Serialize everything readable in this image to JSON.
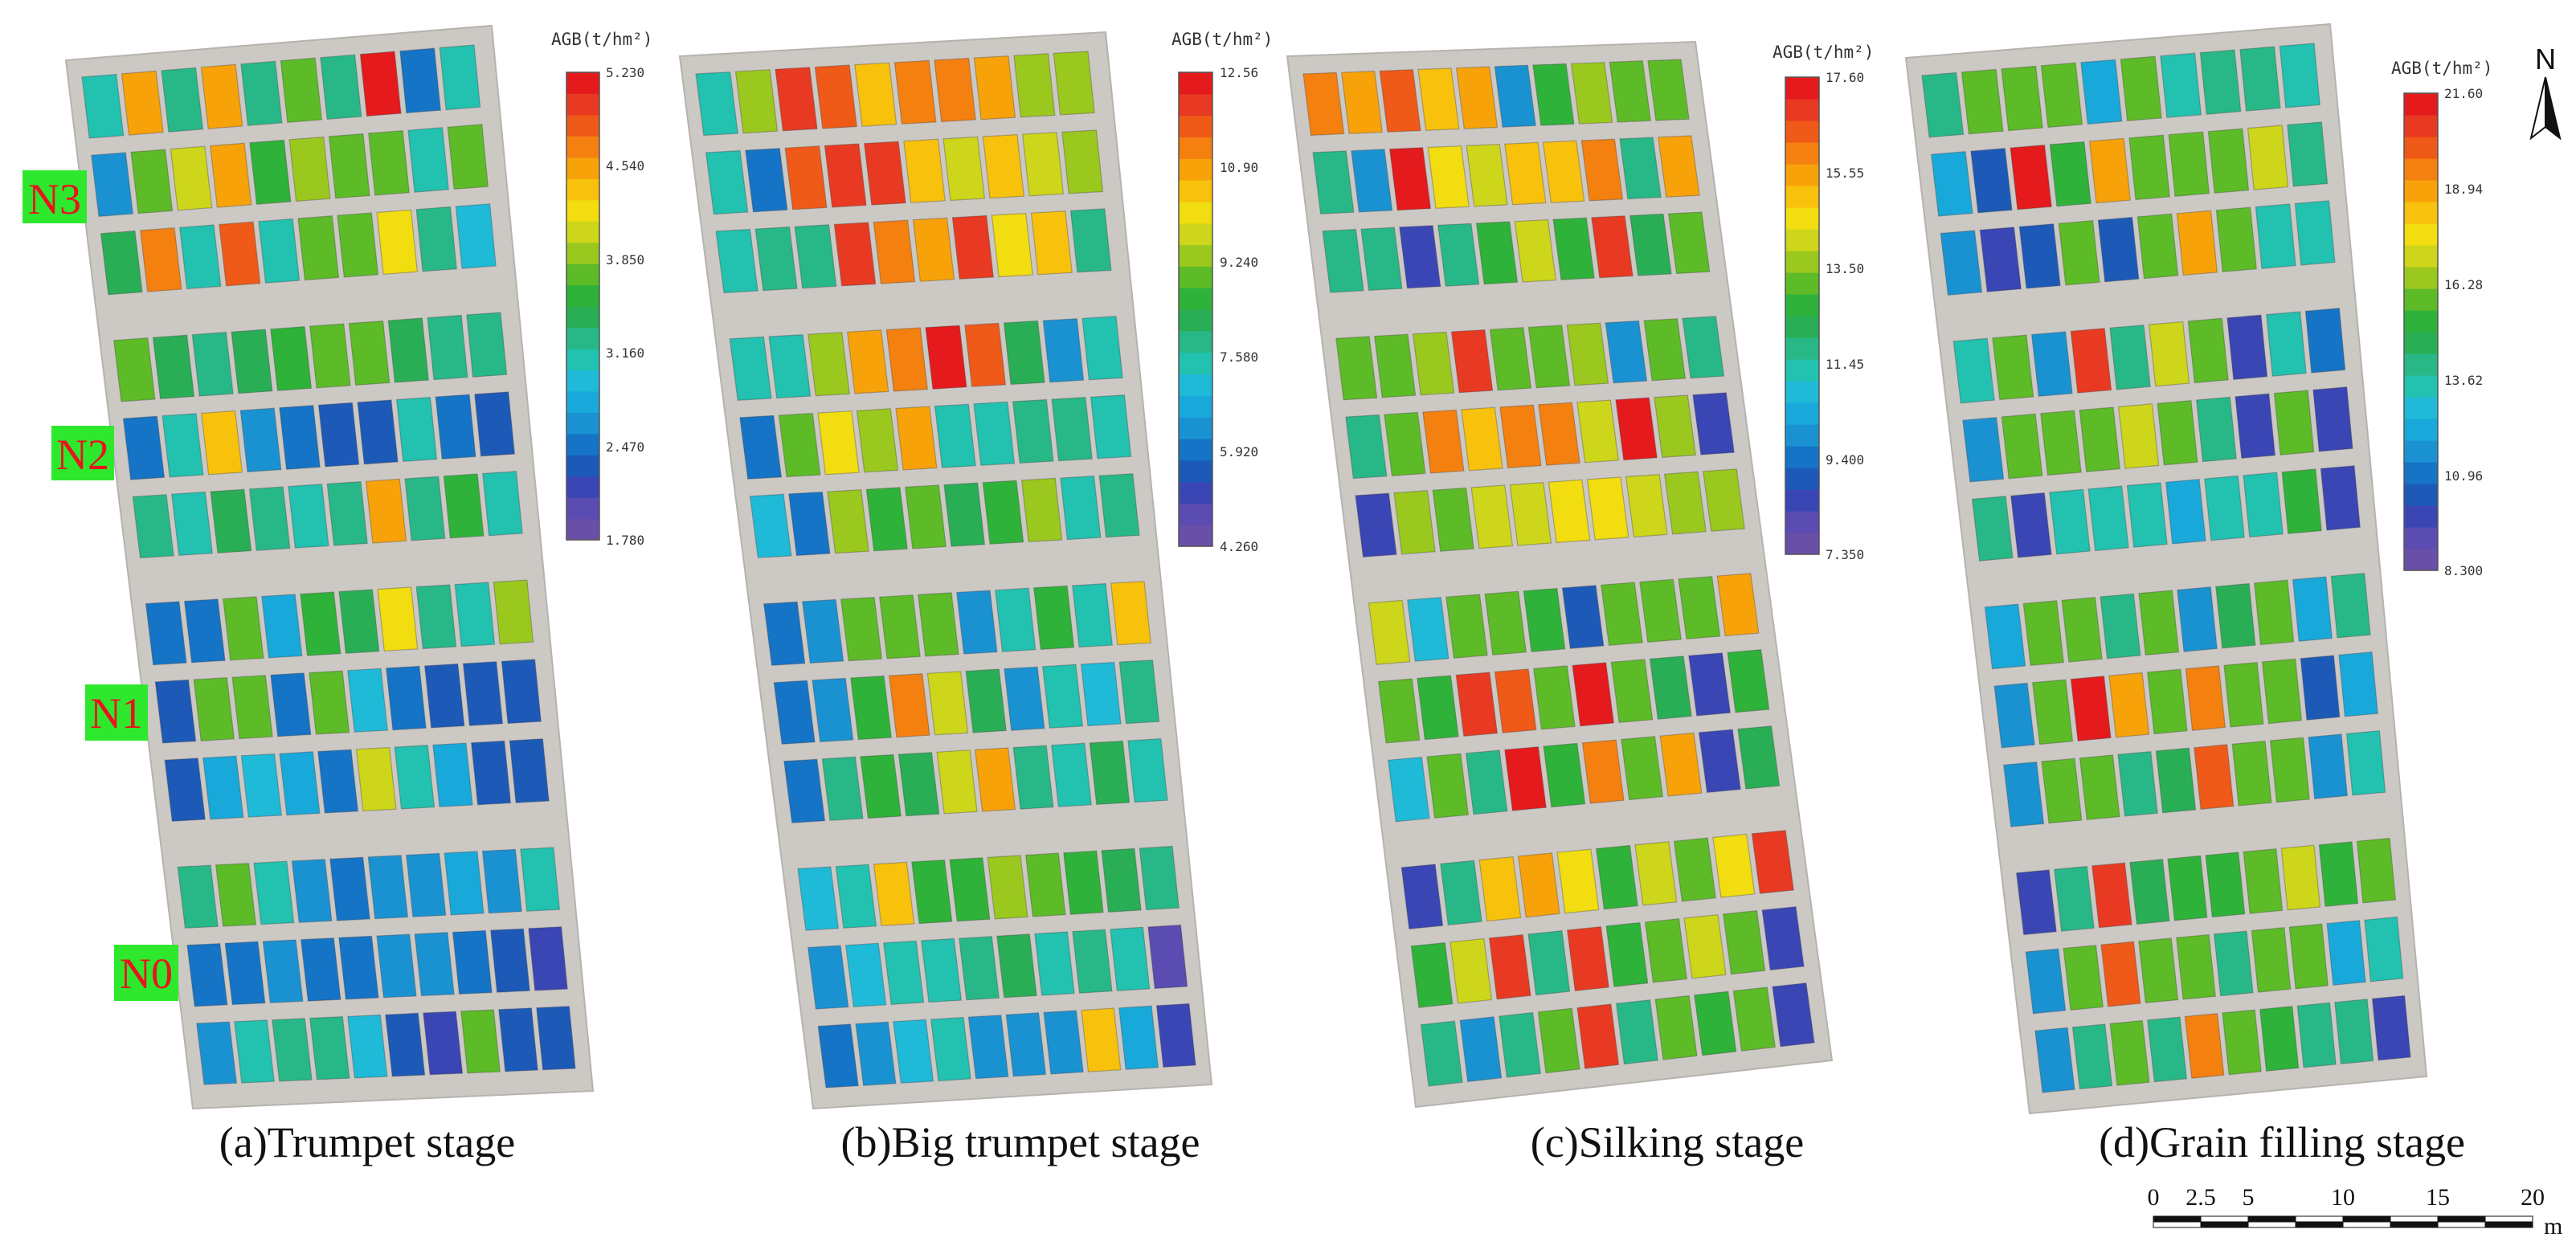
{
  "colorbar_palette": [
    "#6a4fa8",
    "#5a4cb0",
    "#3a46b4",
    "#1d5ab8",
    "#1574c6",
    "#1a92d2",
    "#19a8da",
    "#1fbad8",
    "#22c1b0",
    "#28b888",
    "#2aae55",
    "#2fb23a",
    "#5dbb27",
    "#9bc81e",
    "#cdd61a",
    "#f1dd10",
    "#f8c20c",
    "#f8a20a",
    "#f48010",
    "#ef5a18",
    "#e83a22",
    "#e41a1c"
  ],
  "chart_data": [
    {
      "type": "heatmap",
      "title": "(a)Trumpet stage",
      "legend_title": "AGB(t/hm²)",
      "colorbar_ticks": [
        "5.230",
        "4.540",
        "3.850",
        "3.160",
        "2.470",
        "1.780"
      ],
      "value_range": [
        1.78,
        5.23
      ],
      "rows": [
        [
          3.1,
          4.5,
          3.2,
          4.6,
          3.3,
          3.8,
          3.2,
          5.2,
          2.5,
          3.1
        ],
        [
          2.6,
          3.8,
          4.1,
          4.5,
          3.6,
          3.9,
          3.8,
          3.7,
          3.1,
          3.8
        ],
        [
          3.5,
          4.7,
          3.1,
          4.9,
          3.1,
          3.7,
          3.8,
          4.2,
          3.3,
          2.9
        ],
        [
          3.8,
          3.5,
          3.2,
          3.5,
          3.6,
          3.8,
          3.7,
          3.4,
          3.2,
          3.2
        ],
        [
          2.5,
          3.1,
          4.4,
          2.6,
          2.5,
          2.3,
          2.2,
          3.1,
          2.5,
          2.3
        ],
        [
          3.2,
          3.1,
          3.4,
          3.2,
          3.1,
          3.3,
          4.5,
          3.3,
          3.6,
          3.1
        ],
        [
          2.5,
          2.5,
          3.8,
          2.8,
          3.6,
          3.4,
          4.2,
          3.2,
          3.1,
          3.9
        ],
        [
          2.2,
          3.8,
          3.8,
          2.4,
          3.7,
          2.9,
          2.5,
          2.3,
          2.2,
          2.2
        ],
        [
          2.2,
          2.7,
          2.9,
          2.8,
          2.4,
          4.1,
          3.1,
          2.8,
          2.2,
          2.2
        ],
        [
          3.2,
          3.7,
          3.1,
          2.6,
          2.5,
          2.6,
          2.6,
          2.8,
          2.6,
          3.1
        ],
        [
          2.5,
          2.5,
          2.6,
          2.5,
          2.5,
          2.6,
          2.6,
          2.5,
          2.2,
          2.1
        ],
        [
          2.6,
          3.1,
          3.2,
          3.2,
          3.0,
          2.2,
          2.1,
          3.8,
          2.2,
          2.2
        ]
      ]
    },
    {
      "type": "heatmap",
      "title": "(b)Big trumpet stage",
      "legend_title": "AGB(t/hm²)",
      "colorbar_ticks": [
        "12.56",
        "10.90",
        "9.240",
        "7.580",
        "5.920",
        "4.260"
      ],
      "value_range": [
        4.26,
        12.56
      ],
      "rows": [
        [
          7.6,
          9.3,
          12.3,
          11.8,
          10.5,
          11.5,
          11.3,
          11.0,
          9.3,
          9.4
        ],
        [
          7.4,
          5.8,
          11.6,
          12.0,
          12.3,
          10.6,
          9.9,
          10.4,
          9.8,
          9.5
        ],
        [
          7.6,
          7.7,
          8.0,
          12.1,
          11.5,
          11.0,
          12.2,
          10.2,
          10.6,
          7.8
        ],
        [
          7.6,
          7.6,
          9.3,
          10.8,
          11.4,
          12.4,
          11.6,
          8.4,
          6.1,
          7.4
        ],
        [
          6.0,
          9.2,
          10.3,
          9.4,
          10.8,
          7.6,
          7.4,
          8.0,
          7.7,
          7.4
        ],
        [
          6.9,
          6.0,
          9.3,
          8.8,
          8.9,
          8.2,
          8.7,
          9.3,
          7.5,
          7.8
        ],
        [
          6.0,
          6.3,
          8.9,
          9.1,
          9.2,
          6.1,
          7.4,
          8.5,
          7.6,
          10.5
        ],
        [
          6.0,
          6.3,
          8.6,
          11.5,
          9.6,
          8.4,
          6.3,
          7.5,
          7.1,
          7.7
        ],
        [
          6.0,
          7.8,
          8.7,
          8.1,
          9.7,
          10.9,
          7.7,
          7.6,
          8.1,
          7.5
        ],
        [
          6.9,
          7.6,
          10.7,
          8.6,
          8.7,
          9.3,
          9.2,
          8.7,
          8.1,
          7.8
        ],
        [
          6.3,
          7.2,
          7.5,
          7.5,
          7.8,
          8.1,
          7.4,
          8.0,
          7.3,
          4.7
        ],
        [
          6.0,
          6.3,
          7.2,
          7.3,
          6.2,
          6.1,
          6.3,
          10.5,
          6.6,
          5.1
        ]
      ]
    },
    {
      "type": "heatmap",
      "title": "(c)Silking stage",
      "legend_title": "AGB(t/hm²)",
      "colorbar_ticks": [
        "17.60",
        "15.55",
        "13.50",
        "11.45",
        "9.400",
        "7.350"
      ],
      "value_range": [
        7.35,
        17.6
      ],
      "rows": [
        [
          15.9,
          15.7,
          16.7,
          15.4,
          15.6,
          9.6,
          12.7,
          13.8,
          13.2,
          13.1
        ],
        [
          11.6,
          9.6,
          17.4,
          14.6,
          14.4,
          15.0,
          15.1,
          16.3,
          11.6,
          15.6
        ],
        [
          11.6,
          11.6,
          8.4,
          11.6,
          12.8,
          14.1,
          12.8,
          17.3,
          12.3,
          13.0
        ],
        [
          13.1,
          13.0,
          13.5,
          17.2,
          13.3,
          13.1,
          13.5,
          9.6,
          13.4,
          11.6
        ],
        [
          11.6,
          13.4,
          16.1,
          15.3,
          16.1,
          16.1,
          14.2,
          17.4,
          13.8,
          8.2
        ],
        [
          8.2,
          13.7,
          13.3,
          14.0,
          14.1,
          14.6,
          14.8,
          14.1,
          13.9,
          13.7
        ],
        [
          14.0,
          10.8,
          13.0,
          13.0,
          12.7,
          8.7,
          13.0,
          13.2,
          13.3,
          15.6
        ],
        [
          13.3,
          12.9,
          17.2,
          16.7,
          13.0,
          17.4,
          13.4,
          12.2,
          8.5,
          12.7
        ],
        [
          11.0,
          13.2,
          11.6,
          17.4,
          12.8,
          16.1,
          13.0,
          15.6,
          8.5,
          12.0
        ],
        [
          8.5,
          11.6,
          15.3,
          15.6,
          14.6,
          12.8,
          14.1,
          13.4,
          14.8,
          17.0
        ],
        [
          12.9,
          14.4,
          16.9,
          11.6,
          17.0,
          12.8,
          13.2,
          14.4,
          13.1,
          8.4
        ],
        [
          11.6,
          9.6,
          11.6,
          13.0,
          17.2,
          11.6,
          13.0,
          12.8,
          13.3,
          8.5
        ]
      ]
    },
    {
      "type": "heatmap",
      "title": "(d)Grain filling stage",
      "legend_title": "AGB(t/hm²)",
      "colorbar_ticks": [
        "21.60",
        "18.94",
        "16.28",
        "13.62",
        "10.96",
        "8.300"
      ],
      "value_range": [
        8.3,
        21.6
      ],
      "rows": [
        [
          13.8,
          15.8,
          15.9,
          15.7,
          12.3,
          15.7,
          13.6,
          13.9,
          14.1,
          13.6
        ],
        [
          12.0,
          10.3,
          21.4,
          15.5,
          19.2,
          15.6,
          15.9,
          15.6,
          16.9,
          13.7
        ],
        [
          11.6,
          9.6,
          10.5,
          15.6,
          10.3,
          15.9,
          19.0,
          15.8,
          13.6,
          13.4
        ],
        [
          13.1,
          15.7,
          11.2,
          21.0,
          13.8,
          17.4,
          15.7,
          9.6,
          13.6,
          11.0
        ],
        [
          11.6,
          15.6,
          15.7,
          15.7,
          16.9,
          15.6,
          13.8,
          9.6,
          15.8,
          9.6
        ],
        [
          14.2,
          9.6,
          13.6,
          13.6,
          13.1,
          12.0,
          13.3,
          13.6,
          15.1,
          9.6
        ],
        [
          12.0,
          15.6,
          15.8,
          13.9,
          15.6,
          11.6,
          14.6,
          15.6,
          12.3,
          14.1
        ],
        [
          11.6,
          15.7,
          21.4,
          19.2,
          16.2,
          19.8,
          15.9,
          15.7,
          10.3,
          12.0
        ],
        [
          11.6,
          15.7,
          15.8,
          13.9,
          14.4,
          20.6,
          15.6,
          15.9,
          11.6,
          13.6
        ],
        [
          9.6,
          13.8,
          20.8,
          14.8,
          15.4,
          15.3,
          15.7,
          16.9,
          15.3,
          15.7
        ],
        [
          11.6,
          15.9,
          20.6,
          15.6,
          15.7,
          14.1,
          15.6,
          15.8,
          12.3,
          13.6
        ],
        [
          11.6,
          13.8,
          15.7,
          14.1,
          19.8,
          15.6,
          15.4,
          13.8,
          14.1,
          9.6
        ]
      ]
    }
  ],
  "nitrogen_labels": [
    "N3",
    "N2",
    "N1",
    "N0"
  ],
  "north_label": "N",
  "scale_bar": {
    "tick_labels": [
      "0",
      "2.5",
      "5",
      "10",
      "15",
      "20"
    ],
    "tick_values": [
      0,
      2.5,
      5,
      10,
      15,
      20
    ],
    "unit": "m"
  }
}
